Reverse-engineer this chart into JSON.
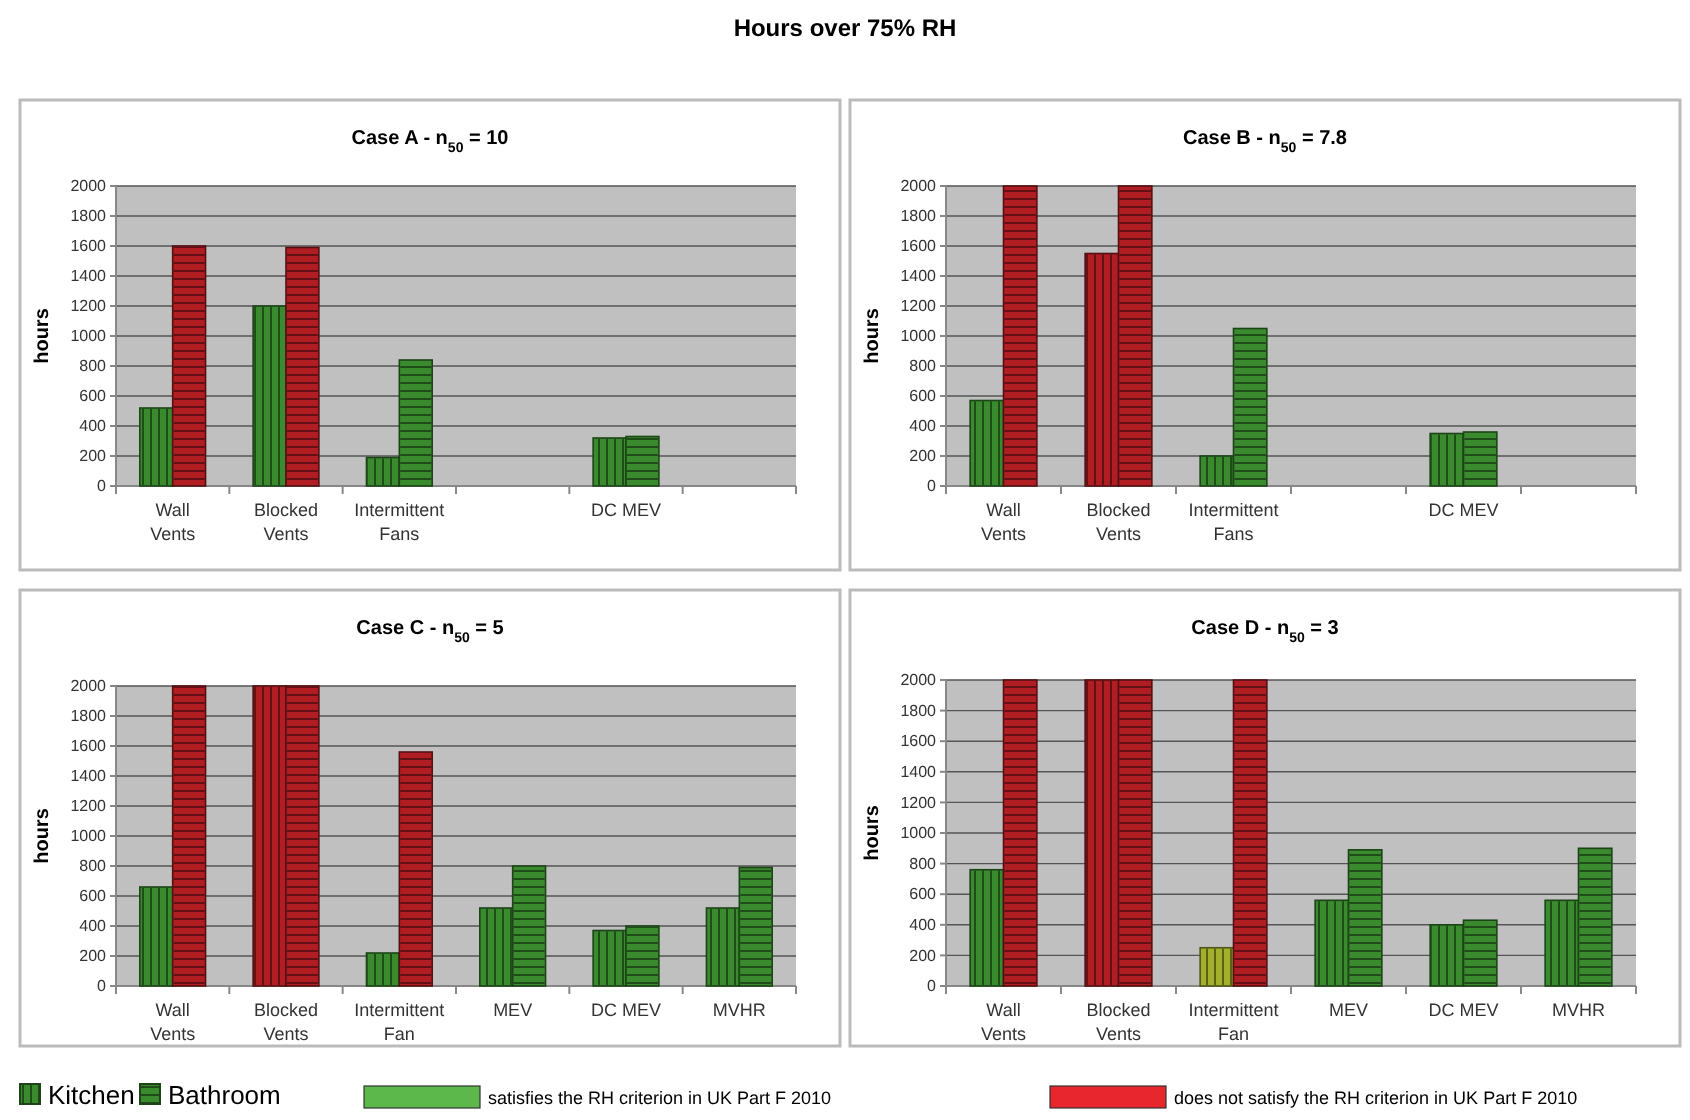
{
  "chart_data": [
    {
      "type": "other",
      "title": "Hours over 75% RH",
      "annotations": [
        "Kitchen",
        "Bathroom",
        "satisfies the RH criterion in UK Part F 2010",
        "does not satisfy the RH criterion in UK Part F 2010"
      ],
      "colors": [
        "#3a8a2e",
        "#3a8a2e",
        "#5cb84a",
        "#e8262d"
      ]
    },
    {
      "type": "bar",
      "title": "Case A - n$_{50}$ = 10",
      "ylabel": "hours",
      "categories": [
        "Wall Vents",
        "Blocked Vents",
        "Intermittent Fans",
        null,
        "DC MEV",
        null
      ],
      "ylim": [
        0,
        2000
      ],
      "yticks": [
        0,
        200,
        400,
        600,
        800,
        1000,
        1200,
        1400,
        1600,
        1800,
        2000
      ],
      "grid": "y",
      "series": [
        {
          "values": [
            520,
            1200,
            190,
            null,
            320,
            null
          ],
          "colors": [
            "#3a8a2e",
            "#3a8a2e",
            "#3a8a2e",
            "#3a8a2e",
            "#3a8a2e",
            "#3a8a2e"
          ]
        },
        {
          "values": [
            1600,
            1590,
            840,
            null,
            330,
            null
          ],
          "colors": [
            "#b01e23",
            "#b01e23",
            "#3a8a2e",
            "#3a8a2e",
            "#3a8a2e",
            "#3a8a2e"
          ]
        }
      ]
    },
    {
      "type": "bar",
      "title": "Case B - n$_{50}$ = 7.8",
      "ylabel": "hours",
      "categories": [
        "Wall Vents",
        "Blocked Vents",
        "Intermittent Fans",
        null,
        "DC MEV",
        null
      ],
      "ylim": [
        0,
        2000
      ],
      "yticks": [
        0,
        200,
        400,
        600,
        800,
        1000,
        1200,
        1400,
        1600,
        1800,
        2000
      ],
      "grid": "y",
      "series": [
        {
          "values": [
            570,
            1550,
            200,
            null,
            350,
            null
          ],
          "colors": [
            "#3a8a2e",
            "#b01e23",
            "#3a8a2e",
            "#3a8a2e",
            "#3a8a2e",
            "#3a8a2e"
          ]
        },
        {
          "values": [
            2000,
            2000,
            1050,
            null,
            360,
            null
          ],
          "colors": [
            "#b01e23",
            "#b01e23",
            "#3a8a2e",
            "#3a8a2e",
            "#3a8a2e",
            "#3a8a2e"
          ]
        }
      ]
    },
    {
      "type": "bar",
      "title": "Case C - n$_{50}$ = 5",
      "ylabel": "hours",
      "categories": [
        "Wall Vents",
        "Blocked Vents",
        "Intermittent Fan",
        "MEV",
        "DC MEV",
        "MVHR"
      ],
      "ylim": [
        0,
        2000
      ],
      "yticks": [
        0,
        200,
        400,
        600,
        800,
        1000,
        1200,
        1400,
        1600,
        1800,
        2000
      ],
      "grid": "y",
      "series": [
        {
          "values": [
            660,
            2000,
            220,
            520,
            370,
            520
          ],
          "colors": [
            "#3a8a2e",
            "#b01e23",
            "#3a8a2e",
            "#3a8a2e",
            "#3a8a2e",
            "#3a8a2e"
          ]
        },
        {
          "values": [
            2000,
            2000,
            1560,
            800,
            400,
            790
          ],
          "colors": [
            "#b01e23",
            "#b01e23",
            "#b01e23",
            "#3a8a2e",
            "#3a8a2e",
            "#3a8a2e"
          ]
        }
      ]
    },
    {
      "type": "bar",
      "title": "Case D - n$_{50}$ = 3",
      "ylabel": "hours",
      "categories": [
        "Wall Vents",
        "Blocked Vents",
        "Intermittent Fan",
        "MEV",
        "DC MEV",
        "MVHR"
      ],
      "ylim": [
        0,
        2000
      ],
      "yticks": [
        0,
        200,
        400,
        600,
        800,
        1000,
        1200,
        1400,
        1600,
        1800,
        2000
      ],
      "grid": "y",
      "series": [
        {
          "values": [
            760,
            2000,
            250,
            560,
            400,
            560
          ],
          "colors": [
            "#3a8a2e",
            "#b01e23",
            "#a3b02c",
            "#3a8a2e",
            "#3a8a2e",
            "#3a8a2e"
          ]
        },
        {
          "values": [
            2000,
            2000,
            2000,
            890,
            430,
            900
          ],
          "colors": [
            "#b01e23",
            "#b01e23",
            "#b01e23",
            "#3a8a2e",
            "#3a8a2e",
            "#3a8a2e"
          ]
        }
      ]
    }
  ]
}
